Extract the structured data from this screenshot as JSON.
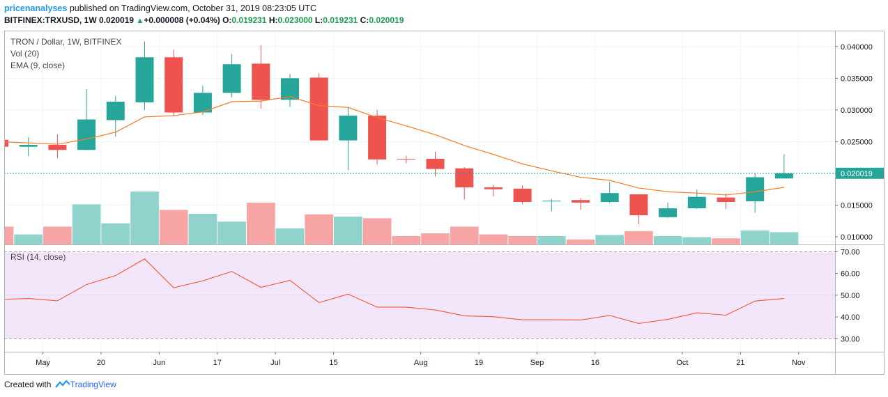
{
  "header": {
    "author": "pricenanalyses",
    "published_text": "published on TradingView.com, October 31, 2019 08:23:05 UTC",
    "symbol": "BITFINEX:TRXUSD, 1W",
    "last": "0.020019",
    "change": "+0.000008 (+0.04%)",
    "o_label": "O:",
    "o_value": "0.019231",
    "h_label": "H:",
    "h_value": "0.023000",
    "l_label": "L:",
    "l_value": "0.019231",
    "c_label": "C:",
    "c_value": "0.020019"
  },
  "legend": {
    "title": "TRON / Dollar, 1W, BITFINEX",
    "vol": "Vol (20)",
    "ema": "EMA (9, close)",
    "rsi": "RSI (14, close)"
  },
  "price_tag": "0.020019",
  "footer": {
    "created_with": "Created with",
    "brand": "TradingView"
  },
  "colors": {
    "up": "#26a69a",
    "down": "#ef5350",
    "vol_up": "#8fd3cc",
    "vol_down": "#f7a5a4",
    "ema": "#f57c22",
    "rsi": "#f0623f",
    "rsi_band": "#f3e6fb"
  },
  "chart_data": {
    "type": "candlestick",
    "y_axis": {
      "range": [
        0.0088,
        0.0425
      ],
      "ticks": [
        "0.040000",
        "0.035000",
        "0.030000",
        "0.025000",
        "0.020000",
        "0.015000",
        "0.010000"
      ],
      "tick_values": [
        0.04,
        0.035,
        0.03,
        0.025,
        0.02,
        0.015,
        0.01
      ]
    },
    "rsi_axis": {
      "range": [
        24,
        73
      ],
      "ticks": [
        "70.00",
        "60.00",
        "50.00",
        "40.00",
        "30.00"
      ],
      "tick_values": [
        70,
        60,
        50,
        40,
        30
      ],
      "band": [
        30,
        70
      ]
    },
    "x_axis": {
      "labels": [
        {
          "text": "May",
          "index": 1.5
        },
        {
          "text": "20",
          "index": 3.5
        },
        {
          "text": "Jun",
          "index": 5.5
        },
        {
          "text": "17",
          "index": 7.5
        },
        {
          "text": "Jul",
          "index": 9.5
        },
        {
          "text": "15",
          "index": 11.5
        },
        {
          "text": "Aug",
          "index": 14.5
        },
        {
          "text": "19",
          "index": 16.5
        },
        {
          "text": "Sep",
          "index": 18.5
        },
        {
          "text": "16",
          "index": 20.5
        },
        {
          "text": "Oct",
          "index": 23.5
        },
        {
          "text": "21",
          "index": 25.5
        },
        {
          "text": "Nov",
          "index": 27.5
        }
      ]
    },
    "last_price": 0.020019,
    "candles": [
      {
        "o": 0.0253,
        "h": 0.0253,
        "l": 0.024,
        "c": 0.0242
      },
      {
        "o": 0.0242,
        "h": 0.0257,
        "l": 0.0227,
        "c": 0.0245
      },
      {
        "o": 0.0245,
        "h": 0.0262,
        "l": 0.0224,
        "c": 0.0237
      },
      {
        "o": 0.0237,
        "h": 0.0333,
        "l": 0.0237,
        "c": 0.0285
      },
      {
        "o": 0.0284,
        "h": 0.0322,
        "l": 0.0258,
        "c": 0.0313
      },
      {
        "o": 0.0312,
        "h": 0.0408,
        "l": 0.03,
        "c": 0.0383
      },
      {
        "o": 0.0383,
        "h": 0.0395,
        "l": 0.029,
        "c": 0.0296
      },
      {
        "o": 0.0296,
        "h": 0.0338,
        "l": 0.0292,
        "c": 0.0327
      },
      {
        "o": 0.0327,
        "h": 0.0388,
        "l": 0.032,
        "c": 0.0372
      },
      {
        "o": 0.0373,
        "h": 0.0402,
        "l": 0.0302,
        "c": 0.0316
      },
      {
        "o": 0.0316,
        "h": 0.0357,
        "l": 0.0305,
        "c": 0.035
      },
      {
        "o": 0.0351,
        "h": 0.0358,
        "l": 0.0252,
        "c": 0.0252
      },
      {
        "o": 0.0252,
        "h": 0.0305,
        "l": 0.0205,
        "c": 0.0291
      },
      {
        "o": 0.0291,
        "h": 0.03,
        "l": 0.0214,
        "c": 0.0222
      },
      {
        "o": 0.0223,
        "h": 0.0228,
        "l": 0.0216,
        "c": 0.0222
      },
      {
        "o": 0.0223,
        "h": 0.0234,
        "l": 0.0195,
        "c": 0.0207
      },
      {
        "o": 0.0208,
        "h": 0.021,
        "l": 0.0159,
        "c": 0.0178
      },
      {
        "o": 0.0178,
        "h": 0.0182,
        "l": 0.0164,
        "c": 0.0175
      },
      {
        "o": 0.0176,
        "h": 0.0181,
        "l": 0.0152,
        "c": 0.0155
      },
      {
        "o": 0.0156,
        "h": 0.016,
        "l": 0.014,
        "c": 0.0157
      },
      {
        "o": 0.0158,
        "h": 0.0161,
        "l": 0.0143,
        "c": 0.0154
      },
      {
        "o": 0.0155,
        "h": 0.0187,
        "l": 0.0153,
        "c": 0.0169
      },
      {
        "o": 0.0167,
        "h": 0.0167,
        "l": 0.012,
        "c": 0.0134
      },
      {
        "o": 0.0131,
        "h": 0.0154,
        "l": 0.013,
        "c": 0.0145
      },
      {
        "o": 0.0145,
        "h": 0.0175,
        "l": 0.0144,
        "c": 0.0163
      },
      {
        "o": 0.0162,
        "h": 0.0168,
        "l": 0.0144,
        "c": 0.0155
      },
      {
        "o": 0.0156,
        "h": 0.02,
        "l": 0.0138,
        "c": 0.0194
      },
      {
        "o": 0.0192,
        "h": 0.023,
        "l": 0.0192,
        "c": 0.02
      }
    ],
    "ema": [
      0.025,
      0.0248,
      0.0246,
      0.0254,
      0.0265,
      0.0289,
      0.0291,
      0.0297,
      0.0313,
      0.0314,
      0.0321,
      0.0307,
      0.0304,
      0.0288,
      0.0275,
      0.0261,
      0.0244,
      0.023,
      0.0215,
      0.0204,
      0.0194,
      0.0189,
      0.0177,
      0.0171,
      0.0169,
      0.0166,
      0.0171,
      0.0178
    ],
    "volume_scale_max": 100,
    "volume": [
      32,
      18,
      32,
      72,
      38,
      95,
      62,
      55,
      41,
      75,
      29,
      54,
      50,
      47,
      15,
      20,
      32,
      18,
      15,
      15,
      9,
      17,
      24,
      15,
      13,
      11,
      25,
      22
    ],
    "rsi": [
      48.0,
      48.5,
      47.4,
      54.9,
      59.0,
      66.7,
      53.4,
      56.6,
      60.9,
      53.6,
      56.8,
      46.6,
      50.5,
      44.5,
      44.5,
      43.2,
      40.5,
      40.1,
      38.7,
      38.7,
      38.6,
      40.7,
      37.0,
      38.9,
      41.9,
      40.8,
      47.3,
      48.5
    ]
  }
}
